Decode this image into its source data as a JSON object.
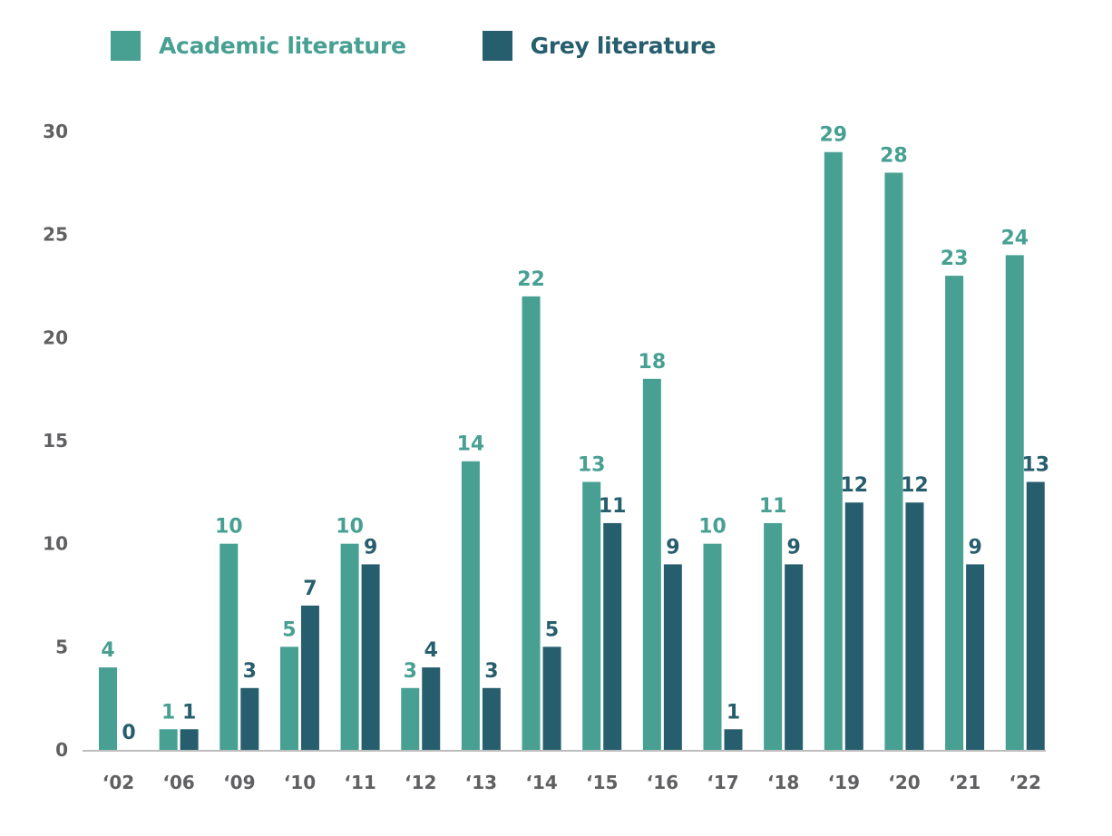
{
  "chart_data": {
    "type": "bar",
    "title": "",
    "xlabel": "",
    "ylabel": "",
    "categories": [
      "‘02",
      "‘06",
      "‘09",
      "‘10",
      "‘11",
      "‘12",
      "‘13",
      "‘14",
      "‘15",
      "‘16",
      "‘17",
      "‘18",
      "‘19",
      "‘20",
      "‘21",
      "‘22"
    ],
    "series": [
      {
        "name": "Academic literature",
        "color": "#47a092",
        "values": [
          4,
          1,
          10,
          5,
          10,
          3,
          14,
          22,
          13,
          18,
          10,
          11,
          29,
          28,
          23,
          24
        ]
      },
      {
        "name": "Grey literature",
        "color": "#275e6d",
        "values": [
          0,
          1,
          3,
          7,
          9,
          4,
          3,
          5,
          11,
          9,
          1,
          9,
          12,
          12,
          9,
          13
        ]
      }
    ],
    "ylim": [
      0,
      30
    ],
    "yticks": [
      0,
      5,
      10,
      15,
      20,
      25,
      30
    ],
    "grid": false,
    "legend_position": "top-left",
    "data_labels": true,
    "axis_color": "#bdbdbd",
    "tick_color": "#606062"
  }
}
